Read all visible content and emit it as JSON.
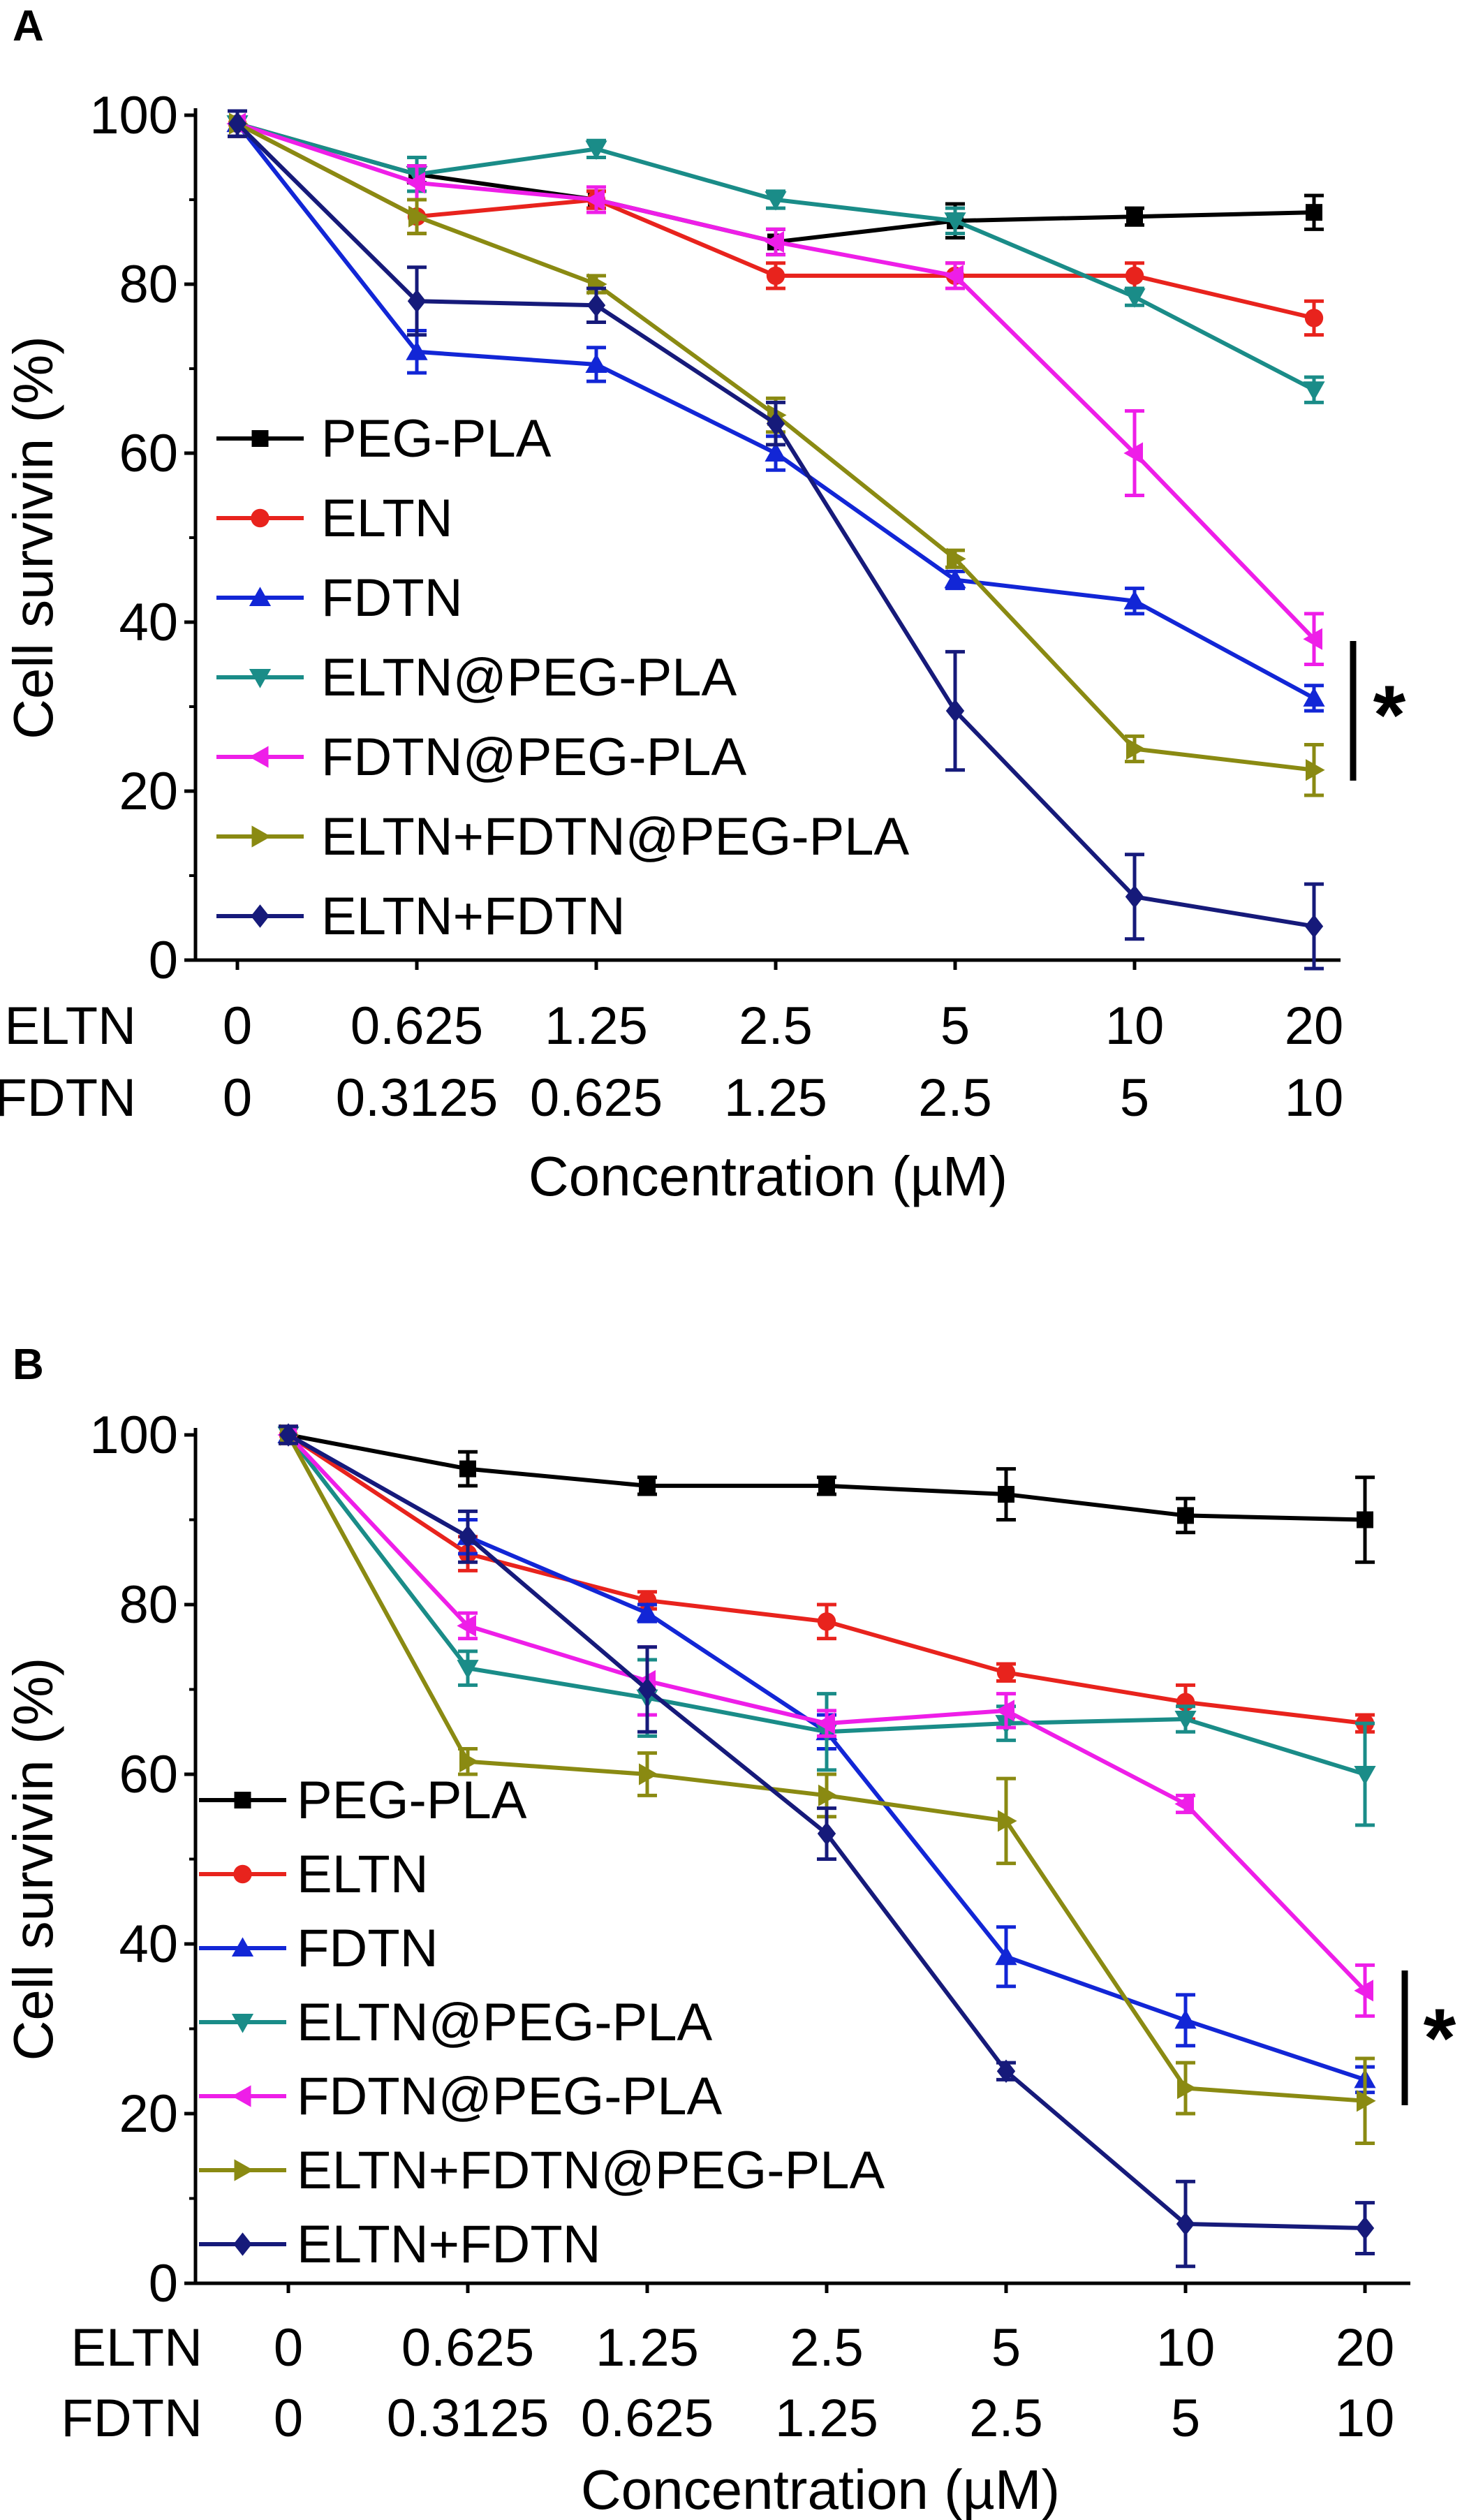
{
  "panels": [
    {
      "label": "A",
      "chart_data": {
        "type": "line",
        "ylabel": "Cell survivin (%)",
        "xlabel": "Concentration (µM)",
        "ylim": [
          0,
          100
        ],
        "yticks": [
          0,
          20,
          40,
          60,
          80,
          100
        ],
        "x_row_labels": [
          "ELTN",
          "FDTN"
        ],
        "categories_eltn": [
          "0",
          "0.625",
          "1.25",
          "2.5",
          "5",
          "10",
          "20"
        ],
        "categories_fdtn": [
          "0",
          "0.3125",
          "0.625",
          "1.25",
          "2.5",
          "5",
          "10"
        ],
        "significance": "*",
        "legend": "left",
        "series": [
          {
            "name": "PEG-PLA",
            "color": "#000000",
            "marker": "square",
            "values": [
              99,
              93,
              90,
              85,
              87.5,
              88,
              88.5
            ],
            "errors": [
              1.5,
              1,
              1,
              1.5,
              2,
              1,
              2
            ]
          },
          {
            "name": "ELTN",
            "color": "#e8231d",
            "marker": "circle",
            "values": [
              99,
              88,
              90,
              81,
              81,
              81,
              76
            ],
            "errors": [
              1.5,
              2,
              1,
              1.5,
              1.5,
              1.5,
              2
            ]
          },
          {
            "name": "FDTN",
            "color": "#1226d6",
            "marker": "triangle-up",
            "values": [
              99,
              72,
              70.5,
              60,
              45,
              42.5,
              31
            ],
            "errors": [
              1.5,
              2.5,
              2,
              2,
              1,
              1.5,
              1.5
            ]
          },
          {
            "name": "ELTN@PEG-PLA",
            "color": "#1a8c88",
            "marker": "triangle-down",
            "values": [
              99,
              93,
              96,
              90,
              87.5,
              78.5,
              67.5
            ],
            "errors": [
              1.5,
              2,
              1,
              1,
              1.5,
              1,
              1.5
            ]
          },
          {
            "name": "FDTN@PEG-PLA",
            "color": "#ee1ee8",
            "marker": "triangle-left",
            "values": [
              99,
              92,
              90,
              85,
              81,
              60,
              38
            ],
            "errors": [
              1.5,
              2,
              1.5,
              1.5,
              1.5,
              5,
              3
            ]
          },
          {
            "name": "ELTN+FDTN@PEG-PLA",
            "color": "#8a8a12",
            "marker": "triangle-right",
            "values": [
              99,
              88,
              80,
              64.5,
              47.5,
              25,
              22.5
            ],
            "errors": [
              1.5,
              2,
              1,
              2,
              1,
              1.5,
              3
            ]
          },
          {
            "name": "ELTN+FDTN",
            "color": "#161a7a",
            "marker": "diamond",
            "values": [
              99,
              78,
              77.5,
              63.5,
              29.5,
              7.5,
              4
            ],
            "errors": [
              1.5,
              4,
              2,
              2.5,
              7,
              5,
              5
            ]
          }
        ]
      }
    },
    {
      "label": "B",
      "chart_data": {
        "type": "line",
        "ylabel": "Cell survivin (%)",
        "xlabel": "Concentration (µM)",
        "ylim": [
          0,
          100
        ],
        "yticks": [
          0,
          20,
          40,
          60,
          80,
          100
        ],
        "x_row_labels": [
          "ELTN",
          "FDTN"
        ],
        "categories_eltn": [
          "0",
          "0.625",
          "1.25",
          "2.5",
          "5",
          "10",
          "20"
        ],
        "categories_fdtn": [
          "0",
          "0.3125",
          "0.625",
          "1.25",
          "2.5",
          "5",
          "10"
        ],
        "significance": "*",
        "legend": "left",
        "series": [
          {
            "name": "PEG-PLA",
            "color": "#000000",
            "marker": "square",
            "values": [
              100,
              96,
              94,
              94,
              93,
              90.5,
              90
            ],
            "errors": [
              1,
              2,
              1,
              1,
              3,
              2,
              5
            ]
          },
          {
            "name": "ELTN",
            "color": "#e8231d",
            "marker": "circle",
            "values": [
              100,
              86,
              80.5,
              78,
              72,
              68.5,
              66
            ],
            "errors": [
              1,
              2,
              1,
              2,
              1,
              2,
              1
            ]
          },
          {
            "name": "FDTN",
            "color": "#1226d6",
            "marker": "triangle-up",
            "values": [
              100,
              88,
              79,
              65,
              38.5,
              31,
              24
            ],
            "errors": [
              1,
              2,
              1,
              2,
              3.5,
              3,
              1.5
            ]
          },
          {
            "name": "ELTN@PEG-PLA",
            "color": "#1a8c88",
            "marker": "triangle-down",
            "values": [
              100,
              72.5,
              69,
              65,
              66,
              66.5,
              60
            ],
            "errors": [
              1,
              2,
              4.5,
              4.5,
              2,
              1.5,
              6
            ]
          },
          {
            "name": "FDTN@PEG-PLA",
            "color": "#ee1ee8",
            "marker": "triangle-left",
            "values": [
              100,
              77.5,
              71,
              66,
              67.5,
              56.5,
              34.5
            ],
            "errors": [
              1,
              1.5,
              4,
              1.5,
              2,
              1,
              3
            ]
          },
          {
            "name": "ELTN+FDTN@PEG-PLA",
            "color": "#8a8a12",
            "marker": "triangle-right",
            "values": [
              100,
              61.5,
              60,
              57.5,
              54.5,
              23,
              21.5
            ],
            "errors": [
              1,
              1.5,
              2.5,
              2.5,
              5,
              3,
              5
            ]
          },
          {
            "name": "ELTN+FDTN",
            "color": "#161a7a",
            "marker": "diamond",
            "values": [
              100,
              88,
              70,
              53,
              25,
              7,
              6.5
            ],
            "errors": [
              1,
              3,
              5,
              3,
              1,
              5,
              3
            ]
          }
        ]
      }
    }
  ]
}
